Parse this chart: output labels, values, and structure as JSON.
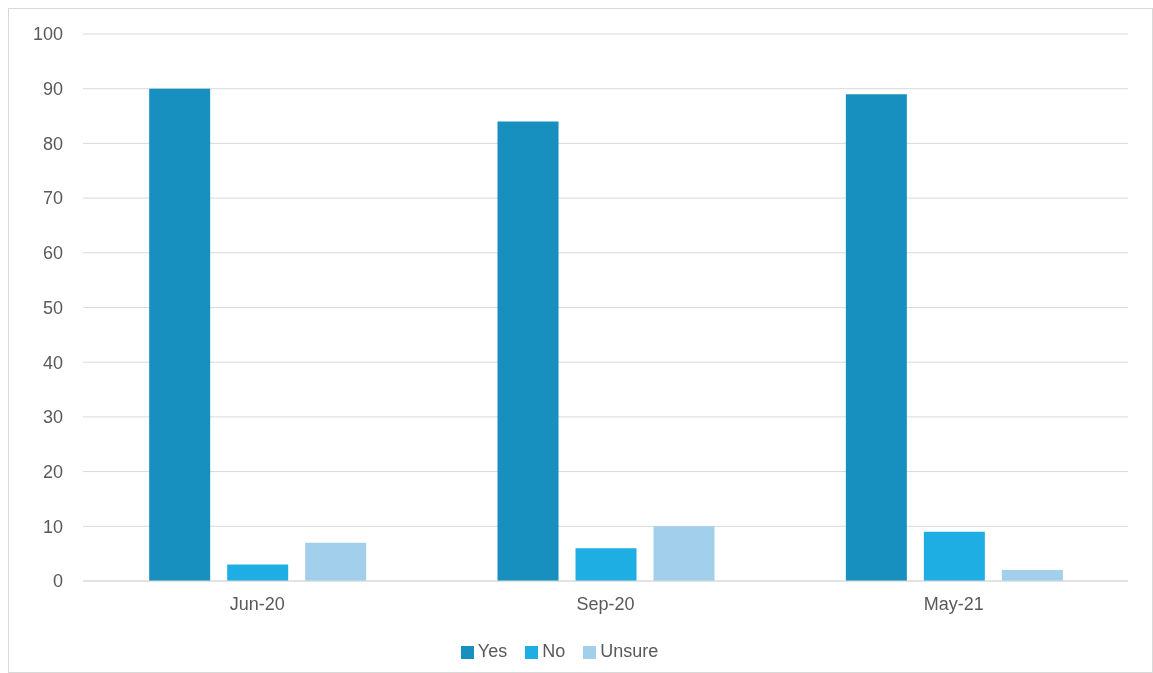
{
  "chart_data": {
    "type": "bar",
    "categories": [
      "Jun-20",
      "Sep-20",
      "May-21"
    ],
    "series": [
      {
        "name": "Yes",
        "color": "#178fbf",
        "values": [
          90,
          84,
          89
        ]
      },
      {
        "name": "No",
        "color": "#1eaee3",
        "values": [
          3,
          6,
          9
        ]
      },
      {
        "name": "Unsure",
        "color": "#a2cfec",
        "values": [
          7,
          10,
          2
        ]
      }
    ],
    "ylim": [
      0,
      100
    ],
    "yticks": [
      0,
      10,
      20,
      30,
      40,
      50,
      60,
      70,
      80,
      90,
      100
    ],
    "grid": "y",
    "legend": "bottom"
  }
}
